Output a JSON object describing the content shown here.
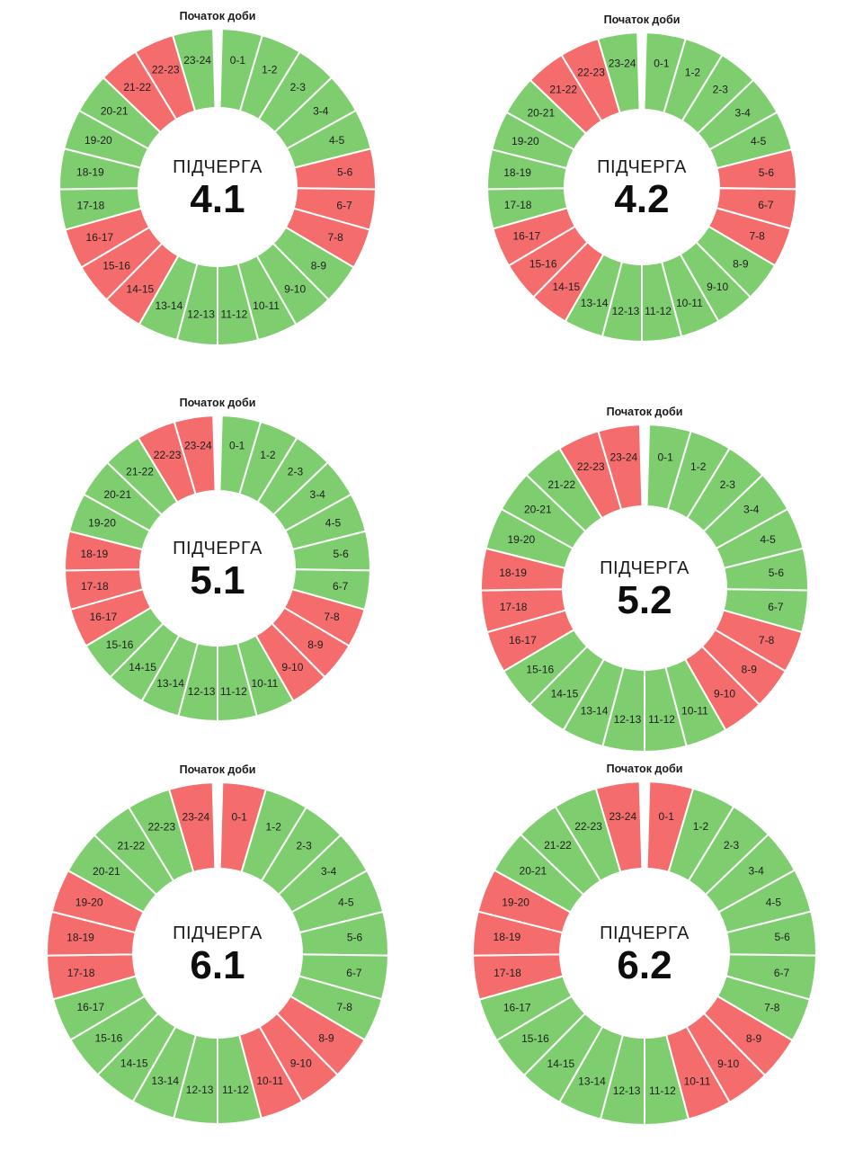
{
  "colors": {
    "power_on": "#7ece6f",
    "power_off": "#f56c6c"
  },
  "chart_data": [
    {
      "type": "pie",
      "start_label": "Початок доби",
      "title_word": "ПІДЧЕРГА",
      "title_number": "4.1",
      "categories": [
        "0-1",
        "1-2",
        "2-3",
        "3-4",
        "4-5",
        "5-6",
        "6-7",
        "7-8",
        "8-9",
        "9-10",
        "10-11",
        "11-12",
        "12-13",
        "13-14",
        "14-15",
        "15-16",
        "16-17",
        "17-18",
        "18-19",
        "19-20",
        "20-21",
        "21-22",
        "22-23",
        "23-24"
      ],
      "status": [
        "on",
        "on",
        "on",
        "on",
        "on",
        "off",
        "off",
        "off",
        "on",
        "on",
        "on",
        "on",
        "on",
        "on",
        "off",
        "off",
        "off",
        "on",
        "on",
        "on",
        "on",
        "off",
        "off",
        "on"
      ]
    },
    {
      "type": "pie",
      "start_label": "Початок доби",
      "title_word": "ПІДЧЕРГА",
      "title_number": "4.2",
      "categories": [
        "0-1",
        "1-2",
        "2-3",
        "3-4",
        "4-5",
        "5-6",
        "6-7",
        "7-8",
        "8-9",
        "9-10",
        "10-11",
        "11-12",
        "12-13",
        "13-14",
        "14-15",
        "15-16",
        "16-17",
        "17-18",
        "18-19",
        "19-20",
        "20-21",
        "21-22",
        "22-23",
        "23-24"
      ],
      "status": [
        "on",
        "on",
        "on",
        "on",
        "on",
        "off",
        "off",
        "off",
        "on",
        "on",
        "on",
        "on",
        "on",
        "on",
        "off",
        "off",
        "off",
        "on",
        "on",
        "on",
        "on",
        "off",
        "off",
        "on"
      ]
    },
    {
      "type": "pie",
      "start_label": "Початок доби",
      "title_word": "ПІДЧЕРГА",
      "title_number": "5.1",
      "categories": [
        "0-1",
        "1-2",
        "2-3",
        "3-4",
        "4-5",
        "5-6",
        "6-7",
        "7-8",
        "8-9",
        "9-10",
        "10-11",
        "11-12",
        "12-13",
        "13-14",
        "14-15",
        "15-16",
        "16-17",
        "17-18",
        "18-19",
        "19-20",
        "20-21",
        "21-22",
        "22-23",
        "23-24"
      ],
      "status": [
        "on",
        "on",
        "on",
        "on",
        "on",
        "on",
        "on",
        "off",
        "off",
        "off",
        "on",
        "on",
        "on",
        "on",
        "on",
        "on",
        "off",
        "off",
        "off",
        "on",
        "on",
        "on",
        "off",
        "off"
      ]
    },
    {
      "type": "pie",
      "start_label": "Початок доби",
      "title_word": "ПІДЧЕРГА",
      "title_number": "5.2",
      "categories": [
        "0-1",
        "1-2",
        "2-3",
        "3-4",
        "4-5",
        "5-6",
        "6-7",
        "7-8",
        "8-9",
        "9-10",
        "10-11",
        "11-12",
        "12-13",
        "13-14",
        "14-15",
        "15-16",
        "16-17",
        "17-18",
        "18-19",
        "19-20",
        "20-21",
        "21-22",
        "22-23",
        "23-24"
      ],
      "status": [
        "on",
        "on",
        "on",
        "on",
        "on",
        "on",
        "on",
        "off",
        "off",
        "off",
        "on",
        "on",
        "on",
        "on",
        "on",
        "on",
        "off",
        "off",
        "off",
        "on",
        "on",
        "on",
        "off",
        "off"
      ]
    },
    {
      "type": "pie",
      "start_label": "Початок доби",
      "title_word": "ПІДЧЕРГА",
      "title_number": "6.1",
      "categories": [
        "0-1",
        "1-2",
        "2-3",
        "3-4",
        "4-5",
        "5-6",
        "6-7",
        "7-8",
        "8-9",
        "9-10",
        "10-11",
        "11-12",
        "12-13",
        "13-14",
        "14-15",
        "15-16",
        "16-17",
        "17-18",
        "18-19",
        "19-20",
        "20-21",
        "21-22",
        "22-23",
        "23-24"
      ],
      "status": [
        "off",
        "on",
        "on",
        "on",
        "on",
        "on",
        "on",
        "on",
        "off",
        "off",
        "off",
        "on",
        "on",
        "on",
        "on",
        "on",
        "on",
        "off",
        "off",
        "off",
        "on",
        "on",
        "on",
        "off"
      ]
    },
    {
      "type": "pie",
      "start_label": "Початок доби",
      "title_word": "ПІДЧЕРГА",
      "title_number": "6.2",
      "categories": [
        "0-1",
        "1-2",
        "2-3",
        "3-4",
        "4-5",
        "5-6",
        "6-7",
        "7-8",
        "8-9",
        "9-10",
        "10-11",
        "11-12",
        "12-13",
        "13-14",
        "14-15",
        "15-16",
        "16-17",
        "17-18",
        "18-19",
        "19-20",
        "20-21",
        "21-22",
        "22-23",
        "23-24"
      ],
      "status": [
        "off",
        "on",
        "on",
        "on",
        "on",
        "on",
        "on",
        "on",
        "off",
        "off",
        "off",
        "on",
        "on",
        "on",
        "on",
        "on",
        "on",
        "off",
        "off",
        "off",
        "on",
        "on",
        "on",
        "off"
      ]
    }
  ]
}
